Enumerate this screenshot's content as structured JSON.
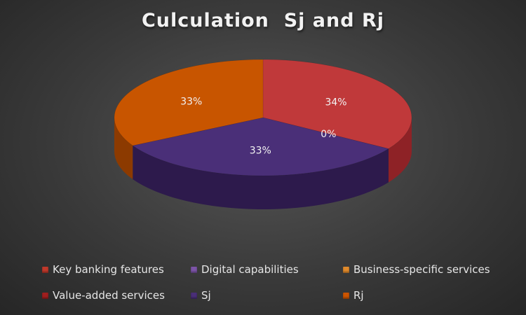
{
  "chart_data": {
    "type": "pie",
    "title": "Culculation  Sj and Rj",
    "series": [
      {
        "name": "Key banking features",
        "value": 0,
        "color": "#c0392b"
      },
      {
        "name": "Digital capabilities",
        "value": 0,
        "color": "#7d55a8"
      },
      {
        "name": "Business-specific services",
        "value": 0,
        "color": "#e08a2c"
      },
      {
        "name": "Value-added services",
        "value": 0,
        "color": "#a01f1f"
      },
      {
        "name": "Sj",
        "value": 0.33,
        "color": "#4a2f78"
      },
      {
        "name": "Rj",
        "value": 0.33,
        "color": "#cc5500"
      }
    ],
    "slices": [
      {
        "label": "34%",
        "value": 34,
        "color": "#c0393a",
        "side": "#8e2226"
      },
      {
        "label": "0%",
        "value": 0,
        "color": "#e08a2c",
        "side": "#a05a10"
      },
      {
        "label": "33%",
        "value": 33,
        "color": "#4a2f78",
        "side": "#2d1a4c"
      },
      {
        "label": "33%",
        "value": 33,
        "color": "#c85500",
        "side": "#8c3a00"
      }
    ],
    "legend_position": "bottom"
  }
}
